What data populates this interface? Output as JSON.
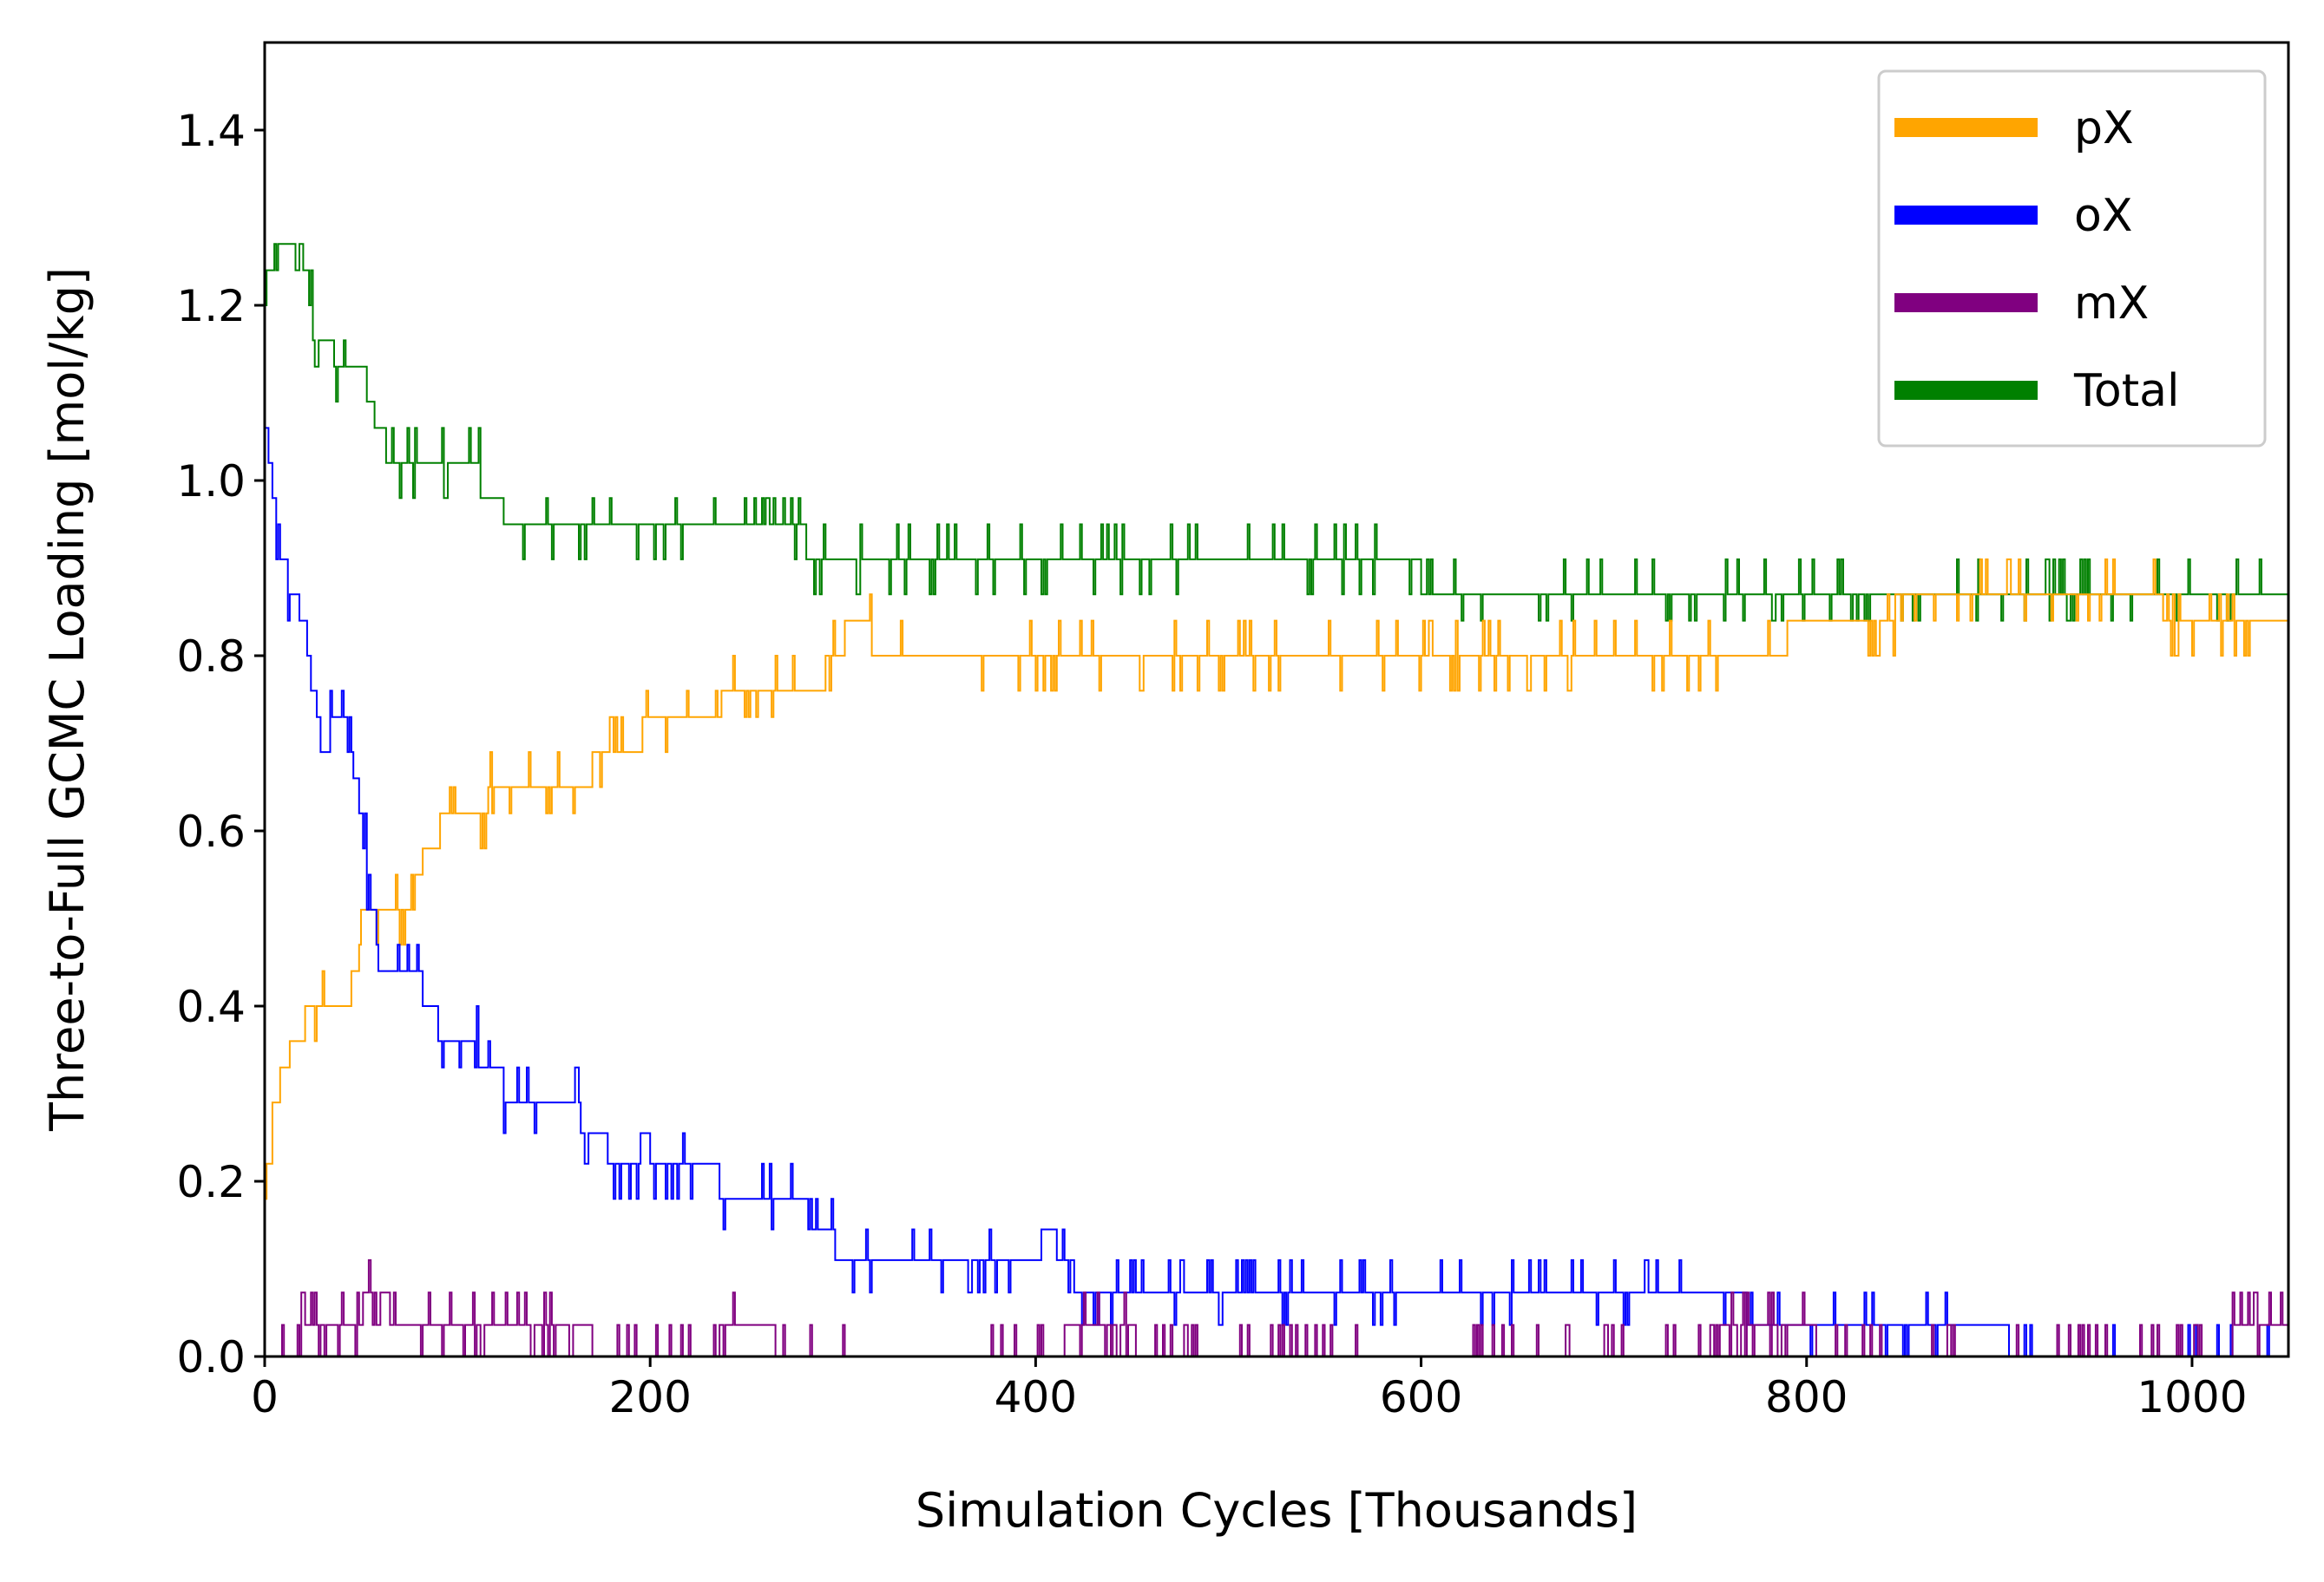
{
  "chart_data": {
    "type": "line",
    "title": "",
    "xlabel": "Simulation Cycles [Thousands]",
    "ylabel": "Three-to-Full GCMC Loading [mol/kg]",
    "xlim": [
      0,
      1050
    ],
    "ylim": [
      0,
      1.5
    ],
    "x_ticks": [
      0,
      200,
      400,
      600,
      800,
      1000
    ],
    "x_tick_labels": [
      "0",
      "200",
      "400",
      "600",
      "800",
      "1000"
    ],
    "y_ticks": [
      0.0,
      0.2,
      0.4,
      0.6,
      0.8,
      1.0,
      1.2,
      1.4
    ],
    "y_tick_labels": [
      "0.0",
      "0.2",
      "0.4",
      "0.6",
      "0.8",
      "1.0",
      "1.2",
      "1.4"
    ],
    "grid": false,
    "legend_position": "top-right",
    "x_step": 1,
    "series": [
      {
        "name": "pX",
        "color": "#FFA500",
        "levels": [
          0.18,
          0.22,
          0.29,
          0.33,
          0.36,
          0.4,
          0.44,
          0.47,
          0.51,
          0.55,
          0.58,
          0.62,
          0.65,
          0.69,
          0.73,
          0.76,
          0.8,
          0.84,
          0.87,
          0.91
        ],
        "noise": 0.14,
        "anchors": [
          [
            0,
            0.18
          ],
          [
            5,
            0.29
          ],
          [
            10,
            0.33
          ],
          [
            15,
            0.36
          ],
          [
            20,
            0.38
          ],
          [
            45,
            0.42
          ],
          [
            50,
            0.47
          ],
          [
            55,
            0.51
          ],
          [
            70,
            0.51
          ],
          [
            80,
            0.55
          ],
          [
            90,
            0.6
          ],
          [
            110,
            0.62
          ],
          [
            120,
            0.65
          ],
          [
            170,
            0.67
          ],
          [
            185,
            0.69
          ],
          [
            200,
            0.72
          ],
          [
            235,
            0.74
          ],
          [
            240,
            0.76
          ],
          [
            290,
            0.78
          ],
          [
            300,
            0.82
          ],
          [
            310,
            0.83
          ],
          [
            330,
            0.79
          ],
          [
            400,
            0.78
          ],
          [
            460,
            0.79
          ],
          [
            500,
            0.82
          ],
          [
            700,
            0.82
          ],
          [
            720,
            0.78
          ],
          [
            780,
            0.8
          ],
          [
            800,
            0.84
          ],
          [
            860,
            0.86
          ],
          [
            920,
            0.86
          ],
          [
            1050,
            0.85
          ]
        ]
      },
      {
        "name": "oX",
        "color": "#0000FF",
        "levels": [
          0.0,
          0.036,
          0.073,
          0.11,
          0.145,
          0.18,
          0.22,
          0.255,
          0.29,
          0.33,
          0.36,
          0.4,
          0.44,
          0.47,
          0.51,
          0.55,
          0.58,
          0.62,
          0.66,
          0.69,
          0.73,
          0.76,
          0.8,
          0.84,
          0.87,
          0.91,
          0.95,
          0.98,
          1.02,
          1.06
        ],
        "noise": 0.12,
        "anchors": [
          [
            0,
            1.06
          ],
          [
            3,
            1.02
          ],
          [
            8,
            0.91
          ],
          [
            15,
            0.87
          ],
          [
            20,
            0.84
          ],
          [
            25,
            0.76
          ],
          [
            30,
            0.7
          ],
          [
            40,
            0.74
          ],
          [
            50,
            0.62
          ],
          [
            55,
            0.51
          ],
          [
            60,
            0.45
          ],
          [
            75,
            0.45
          ],
          [
            85,
            0.4
          ],
          [
            95,
            0.36
          ],
          [
            115,
            0.34
          ],
          [
            130,
            0.29
          ],
          [
            160,
            0.28
          ],
          [
            175,
            0.25
          ],
          [
            185,
            0.2
          ],
          [
            195,
            0.24
          ],
          [
            230,
            0.22
          ],
          [
            240,
            0.18
          ],
          [
            290,
            0.16
          ],
          [
            300,
            0.1
          ],
          [
            350,
            0.11
          ],
          [
            380,
            0.12
          ],
          [
            410,
            0.13
          ],
          [
            420,
            0.09
          ],
          [
            460,
            0.08
          ],
          [
            500,
            0.06
          ],
          [
            700,
            0.06
          ],
          [
            760,
            0.06
          ],
          [
            790,
            0.04
          ],
          [
            800,
            0.03
          ],
          [
            900,
            0.02
          ],
          [
            920,
            0.01
          ],
          [
            1050,
            0.01
          ]
        ]
      },
      {
        "name": "mX",
        "color": "#800080",
        "levels": [
          0.0,
          0.036,
          0.073,
          0.11
        ],
        "noise": 0.22,
        "anchors": [
          [
            0,
            0.0
          ],
          [
            20,
            0.02
          ],
          [
            60,
            0.07
          ],
          [
            80,
            0.03
          ],
          [
            110,
            0.04
          ],
          [
            150,
            0.02
          ],
          [
            200,
            0.015
          ],
          [
            260,
            0.02
          ],
          [
            300,
            0.0
          ],
          [
            380,
            0.005
          ],
          [
            420,
            0.02
          ],
          [
            500,
            0.015
          ],
          [
            580,
            0.01
          ],
          [
            700,
            0.015
          ],
          [
            780,
            0.02
          ],
          [
            900,
            0.01
          ],
          [
            1050,
            0.02
          ]
        ]
      },
      {
        "name": "Total",
        "color": "#008000",
        "levels": [
          0.84,
          0.87,
          0.91,
          0.95,
          0.98,
          1.02,
          1.06,
          1.09,
          1.13,
          1.16,
          1.2,
          1.24,
          1.27
        ],
        "noise": 0.16,
        "anchors": [
          [
            0,
            1.22
          ],
          [
            5,
            1.26
          ],
          [
            20,
            1.26
          ],
          [
            25,
            1.18
          ],
          [
            30,
            1.15
          ],
          [
            50,
            1.13
          ],
          [
            55,
            1.08
          ],
          [
            65,
            1.03
          ],
          [
            110,
            1.01
          ],
          [
            125,
            0.96
          ],
          [
            140,
            0.94
          ],
          [
            180,
            0.95
          ],
          [
            230,
            0.94
          ],
          [
            280,
            0.93
          ],
          [
            320,
            0.91
          ],
          [
            430,
            0.9
          ],
          [
            600,
            0.89
          ],
          [
            700,
            0.88
          ],
          [
            780,
            0.86
          ],
          [
            820,
            0.88
          ],
          [
            900,
            0.89
          ],
          [
            930,
            0.86
          ],
          [
            1050,
            0.86
          ]
        ]
      }
    ]
  }
}
